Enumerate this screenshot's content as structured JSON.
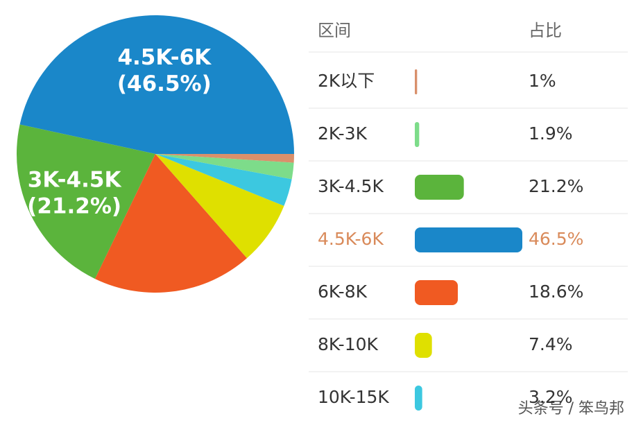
{
  "chart_data": {
    "type": "pie",
    "column_headers": [
      "区间",
      "占比"
    ],
    "categories": [
      "2K以下",
      "2K-3K",
      "3K-4.5K",
      "4.5K-6K",
      "6K-8K",
      "8K-10K",
      "10K-15K"
    ],
    "values": [
      1,
      1.9,
      21.2,
      46.5,
      18.6,
      7.4,
      3.2
    ],
    "value_labels": [
      "1%",
      "1.9%",
      "21.2%",
      "46.5%",
      "18.6%",
      "7.4%",
      "3.2%"
    ],
    "pie_value_labels": [
      null,
      null,
      "(21.2%)",
      "(46.5%)",
      null,
      null,
      null
    ],
    "colors": [
      "#d9906b",
      "#7ddc8a",
      "#5bb43c",
      "#1a87c9",
      "#f05a22",
      "#dfe000",
      "#3cc8e0"
    ],
    "highlight_index": 3,
    "watermark": "头条号 / 笨鸟邦"
  }
}
